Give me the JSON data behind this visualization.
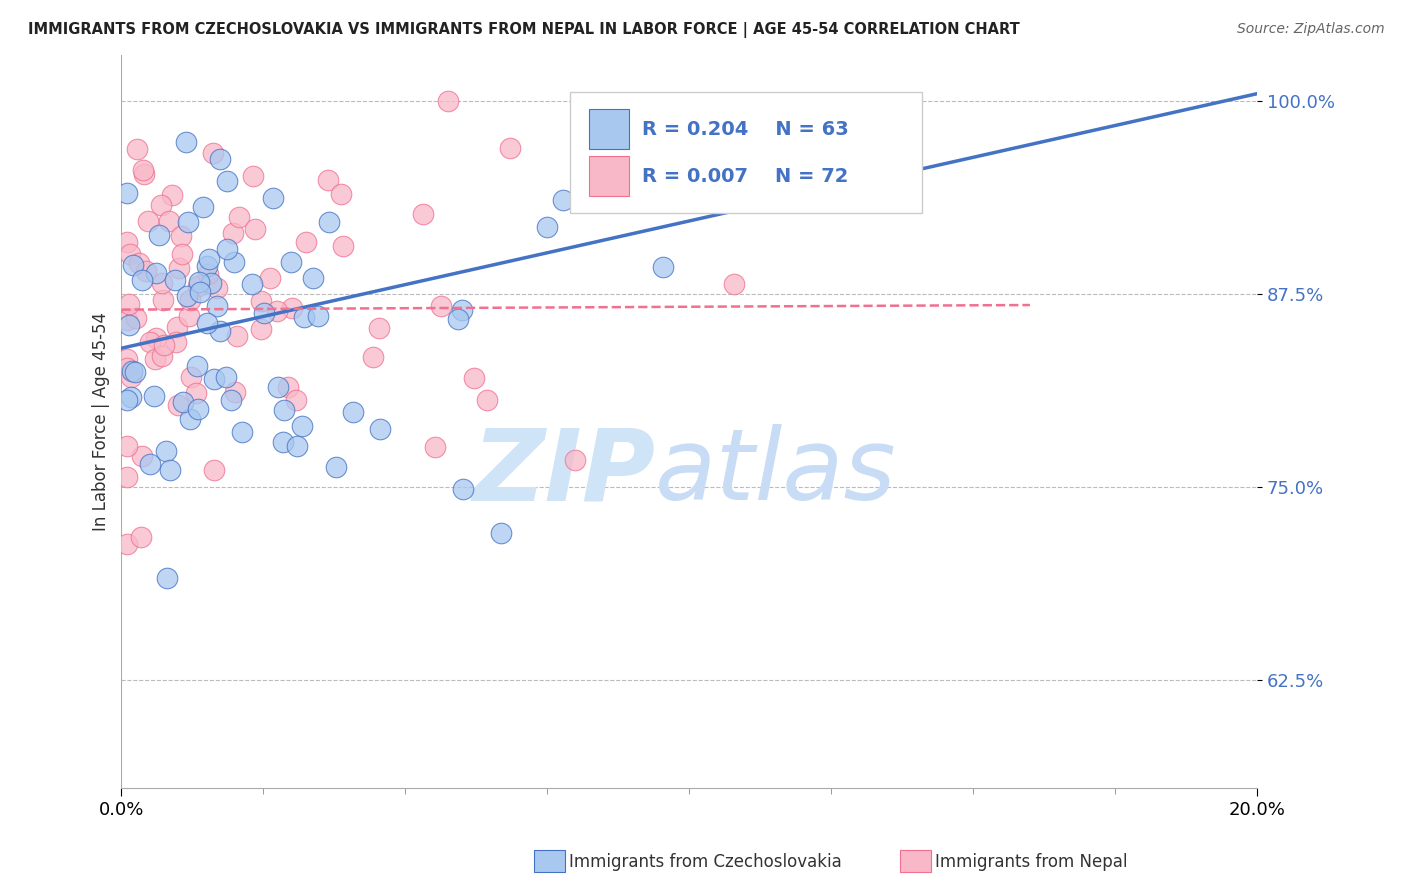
{
  "title": "IMMIGRANTS FROM CZECHOSLOVAKIA VS IMMIGRANTS FROM NEPAL IN LABOR FORCE | AGE 45-54 CORRELATION CHART",
  "source": "Source: ZipAtlas.com",
  "ylabel": "In Labor Force | Age 45-54",
  "xmin": 0.0,
  "xmax": 0.2,
  "ymin": 0.555,
  "ymax": 1.03,
  "yticks": [
    0.625,
    0.75,
    0.875,
    1.0
  ],
  "ytick_labels": [
    "62.5%",
    "75.0%",
    "87.5%",
    "100.0%"
  ],
  "xtick_labels": [
    "0.0%",
    "20.0%"
  ],
  "legend_r1": "R = 0.204",
  "legend_n1": "N = 63",
  "legend_r2": "R = 0.007",
  "legend_n2": "N = 72",
  "color_blue": "#a8c8f0",
  "color_pink": "#f8b8c8",
  "line_blue": "#4472c4",
  "line_pink": "#f07090",
  "background": "#ffffff",
  "grid_color": "#bbbbbb",
  "watermark_color": "#d0e4f8",
  "blue_line_y0": 0.84,
  "blue_line_y1": 1.005,
  "pink_line_y0": 0.865,
  "pink_line_y1": 0.868,
  "pink_line_x1": 0.16
}
